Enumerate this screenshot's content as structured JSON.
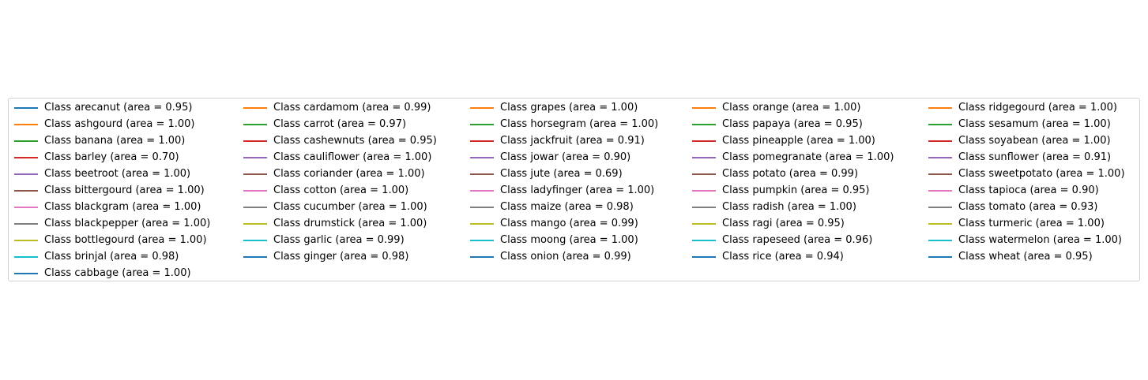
{
  "chart_data": {
    "type": "line",
    "legend_placement": "center",
    "palette": [
      "#1f77b4",
      "#ff7f0e",
      "#2ca02c",
      "#d62728",
      "#9467bd",
      "#8c564b",
      "#e377c2",
      "#7f7f7f",
      "#bcbd22",
      "#17becf"
    ],
    "series": [
      {
        "name": "Class arecanut (area = 0.95)"
      },
      {
        "name": "Class ashgourd (area = 1.00)"
      },
      {
        "name": "Class banana (area = 1.00)"
      },
      {
        "name": "Class barley (area = 0.70)"
      },
      {
        "name": "Class beetroot (area = 1.00)"
      },
      {
        "name": "Class bittergourd (area = 1.00)"
      },
      {
        "name": "Class blackgram (area = 1.00)"
      },
      {
        "name": "Class blackpepper (area = 1.00)"
      },
      {
        "name": "Class bottlegourd (area = 1.00)"
      },
      {
        "name": "Class brinjal (area = 0.98)"
      },
      {
        "name": "Class cabbage (area = 1.00)"
      },
      {
        "name": "Class cardamom (area = 0.99)"
      },
      {
        "name": "Class carrot (area = 0.97)"
      },
      {
        "name": "Class cashewnuts (area = 0.95)"
      },
      {
        "name": "Class cauliflower (area = 1.00)"
      },
      {
        "name": "Class coriander (area = 1.00)"
      },
      {
        "name": "Class cotton (area = 1.00)"
      },
      {
        "name": "Class cucumber (area = 1.00)"
      },
      {
        "name": "Class drumstick (area = 1.00)"
      },
      {
        "name": "Class garlic (area = 0.99)"
      },
      {
        "name": "Class ginger (area = 0.98)"
      },
      {
        "name": "Class grapes (area = 1.00)"
      },
      {
        "name": "Class horsegram (area = 1.00)"
      },
      {
        "name": "Class jackfruit (area = 0.91)"
      },
      {
        "name": "Class jowar (area = 0.90)"
      },
      {
        "name": "Class jute (area = 0.69)"
      },
      {
        "name": "Class ladyfinger (area = 1.00)"
      },
      {
        "name": "Class maize (area = 0.98)"
      },
      {
        "name": "Class mango (area = 0.99)"
      },
      {
        "name": "Class moong (area = 1.00)"
      },
      {
        "name": "Class onion (area = 0.99)"
      },
      {
        "name": "Class orange (area = 1.00)"
      },
      {
        "name": "Class papaya (area = 0.95)"
      },
      {
        "name": "Class pineapple (area = 1.00)"
      },
      {
        "name": "Class pomegranate (area = 1.00)"
      },
      {
        "name": "Class potato (area = 0.99)"
      },
      {
        "name": "Class pumpkin (area = 0.95)"
      },
      {
        "name": "Class radish (area = 1.00)"
      },
      {
        "name": "Class ragi (area = 0.95)"
      },
      {
        "name": "Class rapeseed (area = 0.96)"
      },
      {
        "name": "Class rice (area = 0.94)"
      },
      {
        "name": "Class ridgegourd (area = 1.00)"
      },
      {
        "name": "Class sesamum (area = 1.00)"
      },
      {
        "name": "Class soyabean (area = 1.00)"
      },
      {
        "name": "Class sunflower (area = 0.91)"
      },
      {
        "name": "Class sweetpotato (area = 1.00)"
      },
      {
        "name": "Class tapioca (area = 0.90)"
      },
      {
        "name": "Class tomato (area = 0.93)"
      },
      {
        "name": "Class turmeric (area = 1.00)"
      },
      {
        "name": "Class watermelon (area = 1.00)"
      },
      {
        "name": "Class wheat (area = 0.95)"
      }
    ]
  }
}
